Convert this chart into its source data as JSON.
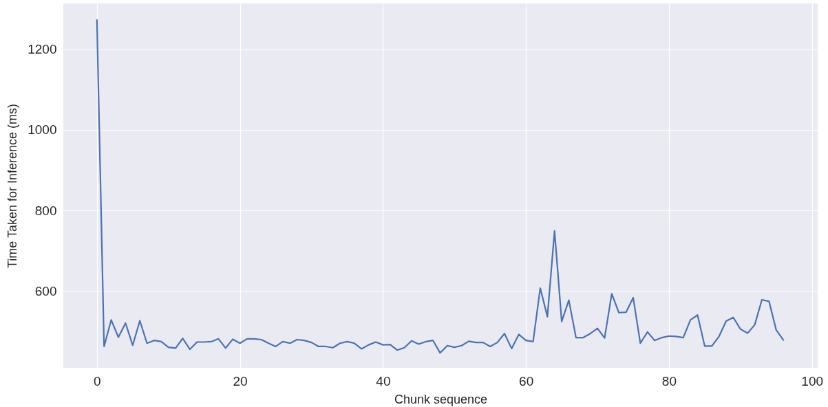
{
  "chart_data": {
    "type": "line",
    "xlabel": "Chunk sequence",
    "ylabel": "Time Taken for Inference (ms)",
    "x": [
      0,
      1,
      2,
      3,
      4,
      5,
      6,
      7,
      8,
      9,
      10,
      11,
      12,
      13,
      14,
      15,
      16,
      17,
      18,
      19,
      20,
      21,
      22,
      23,
      24,
      25,
      26,
      27,
      28,
      29,
      30,
      31,
      32,
      33,
      34,
      35,
      36,
      37,
      38,
      39,
      40,
      41,
      42,
      43,
      44,
      45,
      46,
      47,
      48,
      49,
      50,
      51,
      52,
      53,
      54,
      55,
      56,
      57,
      58,
      59,
      60,
      61,
      62,
      63,
      64,
      65,
      66,
      67,
      68,
      69,
      70,
      71,
      72,
      73,
      74,
      75,
      76,
      77,
      78,
      79,
      80,
      81,
      82,
      83,
      84,
      85,
      86,
      87,
      88,
      89,
      90,
      91,
      92,
      93,
      94,
      95,
      96
    ],
    "series": [
      {
        "color": "#4c72b0",
        "values": [
          1273,
          462,
          528,
          485,
          520,
          465,
          526,
          470,
          477,
          474,
          460,
          458,
          482,
          455,
          473,
          473,
          474,
          481,
          458,
          480,
          470,
          481,
          481,
          479,
          470,
          462,
          474,
          470,
          479,
          477,
          472,
          462,
          462,
          459,
          470,
          474,
          470,
          456,
          466,
          473,
          466,
          467,
          453,
          459,
          476,
          468,
          474,
          477,
          446,
          464,
          460,
          464,
          475,
          472,
          472,
          462,
          472,
          494,
          457,
          492,
          477,
          474,
          607,
          536,
          749,
          524,
          577,
          484,
          484,
          494,
          507,
          483,
          593,
          546,
          547,
          583,
          470,
          498,
          477,
          484,
          488,
          487,
          484,
          528,
          540,
          463,
          463,
          487,
          525,
          534,
          505,
          495,
          516,
          578,
          574,
          503,
          478
        ]
      }
    ],
    "xlim": [
      -4.7,
      100.8
    ],
    "ylim": [
      409,
      1314
    ],
    "xticks": [
      0,
      20,
      40,
      60,
      80,
      100
    ],
    "yticks": [
      600,
      800,
      1000,
      1200
    ],
    "grid": true,
    "line_style": "solid",
    "marker": "none"
  }
}
